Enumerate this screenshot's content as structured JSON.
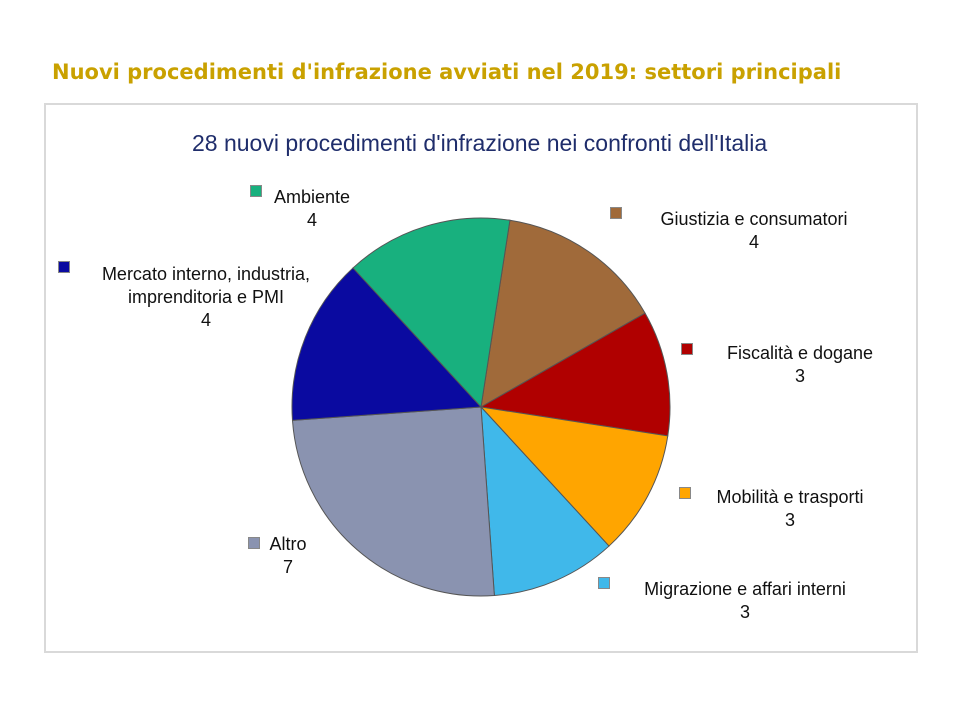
{
  "page_title": "Nuovi procedimenti d'infrazione avviati nel 2019: settori principali",
  "chart_data": {
    "type": "pie",
    "title": "28 nuovi procedimenti d'infrazione nei confronti dell'Italia",
    "total": 28,
    "slices": [
      {
        "label": "Giustizia e consumatori",
        "value": 4,
        "color": "#a06a3a"
      },
      {
        "label": "Fiscalità e dogane",
        "value": 3,
        "color": "#b00000"
      },
      {
        "label": "Mobilità e trasporti",
        "value": 3,
        "color": "#ffa500"
      },
      {
        "label": "Migrazione e affari interni",
        "value": 3,
        "color": "#40b8ea"
      },
      {
        "label": "Altro",
        "value": 7,
        "color": "#8a93b0"
      },
      {
        "label": "Mercato interno, industria, imprenditoria e PMI",
        "value": 4,
        "color": "#0a0aa0"
      },
      {
        "label": "Ambiente",
        "value": 4,
        "color": "#18b07e"
      }
    ]
  }
}
